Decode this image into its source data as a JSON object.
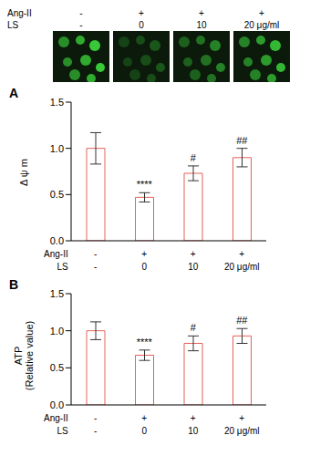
{
  "conditions": {
    "rows": [
      {
        "label": "Ang-II",
        "cells": [
          "-",
          "+",
          "+",
          "+"
        ]
      },
      {
        "label": "LS",
        "cells": [
          "-",
          "0",
          "10",
          "20 μg/ml"
        ]
      }
    ]
  },
  "chart_data": [
    {
      "panel_label": "A",
      "type": "bar",
      "y_label": "Δ ψ m",
      "categories": [
        null,
        null,
        null,
        null
      ],
      "values": [
        1.0,
        0.47,
        0.73,
        0.9
      ],
      "errors": [
        0.17,
        0.05,
        0.08,
        0.1
      ],
      "significance": [
        null,
        "****",
        "#",
        "##"
      ],
      "color": "#e8605a",
      "ylim": [
        0,
        1.5
      ],
      "yticks": [
        {
          "value": 0,
          "label": "0.0"
        },
        {
          "value": 0.5,
          "label": "0.5"
        },
        {
          "value": 1,
          "label": "1.0"
        },
        {
          "value": 1.5,
          "label": "1.5"
        }
      ]
    },
    {
      "panel_label": "B",
      "type": "bar",
      "y_label": "ATP\n(Relative value)",
      "categories": [
        null,
        null,
        null,
        null
      ],
      "values": [
        1.0,
        0.67,
        0.83,
        0.93
      ],
      "errors": [
        0.12,
        0.07,
        0.1,
        0.1
      ],
      "significance": [
        null,
        "****",
        "#",
        "##"
      ],
      "color": "#e8605a",
      "ylim": [
        0,
        1.5
      ],
      "yticks": [
        {
          "value": 0,
          "label": "0.0"
        },
        {
          "value": 0.5,
          "label": "0.5"
        },
        {
          "value": 1,
          "label": "1.0"
        },
        {
          "value": 1.5,
          "label": "1.5"
        }
      ]
    }
  ]
}
